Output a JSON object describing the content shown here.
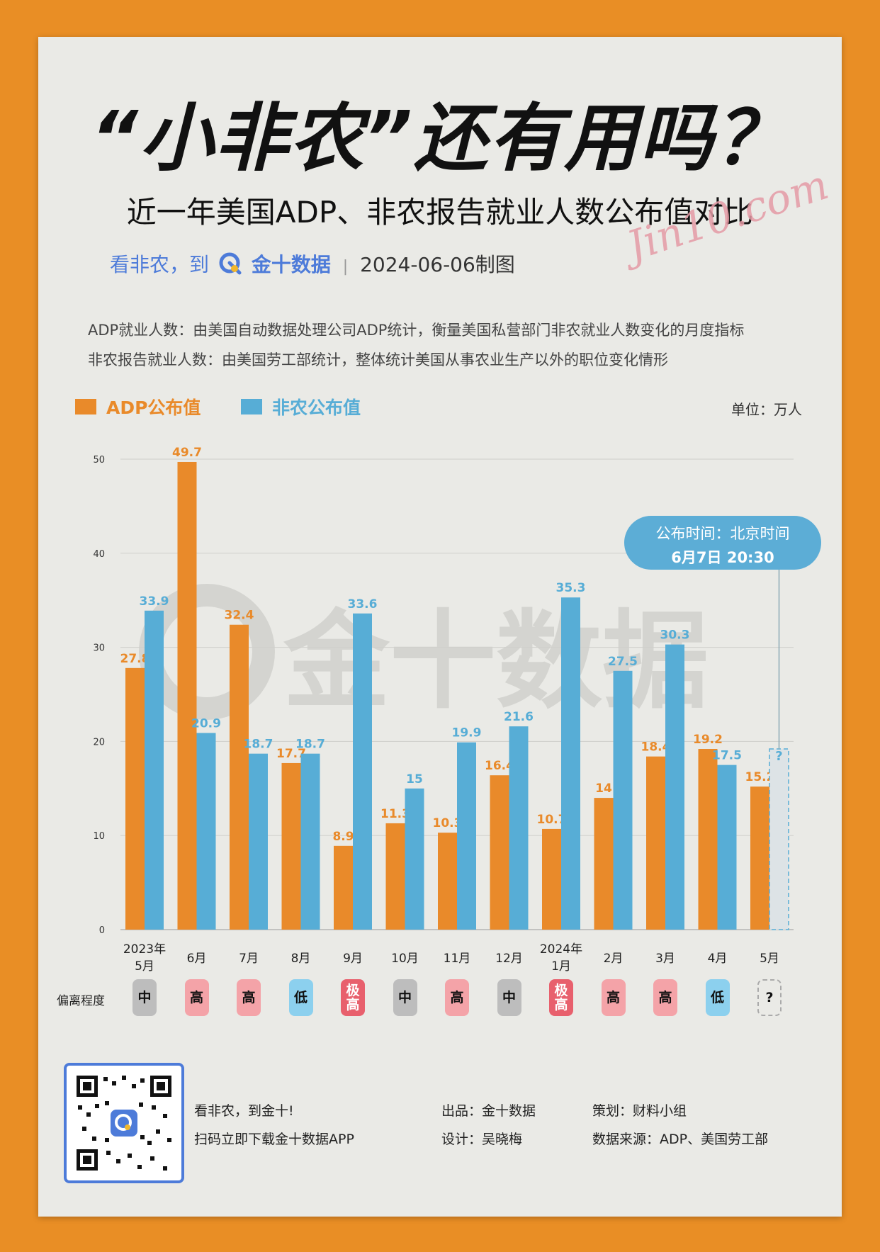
{
  "header": {
    "title": "“小非农”还有用吗？",
    "subtitle": "近一年美国ADP、非农报告就业人数公布值对比",
    "brand_slogan": "看非农，到",
    "brand_name": "金十数据",
    "date": "2024-06-06制图",
    "signature": "Jin10.com"
  },
  "descriptions": [
    "ADP就业人数：由美国自动数据处理公司ADP统计，衡量美国私营部门非农就业人数变化的月度指标",
    "非农报告就业人数：由美国劳工部统计，整体统计美国从事农业生产以外的职位变化情形"
  ],
  "legend": {
    "adp": "ADP公布值",
    "nfp": "非农公布值",
    "unit": "单位：万人"
  },
  "colors": {
    "adp": "#E98A2A",
    "nfp": "#57ADD6",
    "badge_mid": "#BDBDBD",
    "badge_high": "#F4A3A8",
    "badge_very_high": "#E8606D",
    "badge_low": "#8CD0EE"
  },
  "callout": {
    "line1": "公布时间：北京时间",
    "line2": "6月7日 20:30"
  },
  "deviation": {
    "label": "偏离程度",
    "levels": [
      {
        "text": "中",
        "kind": "mid"
      },
      {
        "text": "高",
        "kind": "high"
      },
      {
        "text": "高",
        "kind": "high"
      },
      {
        "text": "低",
        "kind": "low"
      },
      {
        "text": "极高",
        "kind": "very_high"
      },
      {
        "text": "中",
        "kind": "mid"
      },
      {
        "text": "高",
        "kind": "high"
      },
      {
        "text": "中",
        "kind": "mid"
      },
      {
        "text": "极高",
        "kind": "very_high"
      },
      {
        "text": "高",
        "kind": "high"
      },
      {
        "text": "高",
        "kind": "high"
      },
      {
        "text": "低",
        "kind": "low"
      },
      {
        "text": "?",
        "kind": "unknown"
      }
    ]
  },
  "chart_data": {
    "type": "bar",
    "categories": [
      "2023年\n5月",
      "6月",
      "7月",
      "8月",
      "9月",
      "10月",
      "11月",
      "12月",
      "2024年\n1月",
      "2月",
      "3月",
      "4月",
      "5月"
    ],
    "series": [
      {
        "name": "ADP公布值",
        "values": [
          27.8,
          49.7,
          32.4,
          17.7,
          8.9,
          11.3,
          10.3,
          16.4,
          10.7,
          14,
          18.4,
          19.2,
          15.2
        ]
      },
      {
        "name": "非农公布值",
        "values": [
          33.9,
          20.9,
          18.7,
          18.7,
          33.6,
          15,
          19.9,
          21.6,
          35.3,
          27.5,
          30.3,
          17.5,
          null
        ]
      }
    ],
    "pending_label": "?",
    "yticks": [
      0,
      10,
      20,
      30,
      40,
      50
    ],
    "ylim": [
      0,
      50
    ],
    "grid": true,
    "watermark": "金十数据"
  },
  "footer": {
    "slogan1": "看非农，到金十!",
    "slogan2": "扫码立即下载金十数据APP",
    "producer": "出品：金十数据",
    "designer": "设计：吴晓梅",
    "planner": "策划：财料小组",
    "source": "数据来源：ADP、美国劳工部"
  }
}
